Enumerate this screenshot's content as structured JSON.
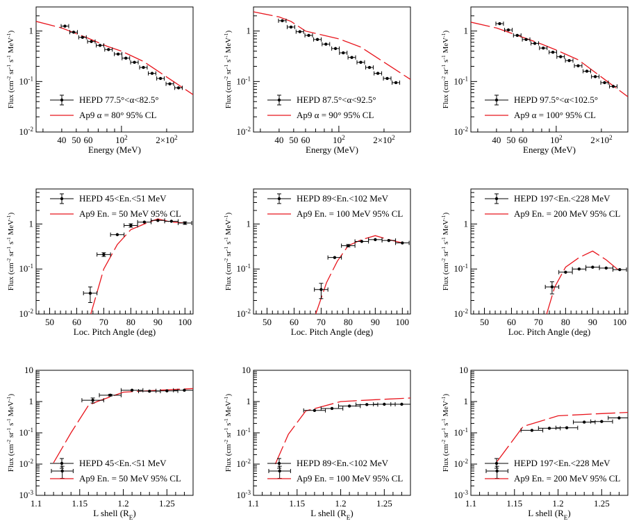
{
  "chart_data": [
    {
      "type": "scatter",
      "xscale": "log",
      "yscale": "log",
      "xlim": [
        27,
        300
      ],
      "ylim": [
        0.01,
        3
      ],
      "xticks": [
        {
          "v": 40,
          "t": "40"
        },
        {
          "v": 50,
          "t": "50"
        },
        {
          "v": 60,
          "t": "60"
        },
        {
          "v": 100,
          "t": "10^2"
        },
        {
          "v": 200,
          "t": "2×10^2"
        }
      ],
      "yticks": [
        {
          "v": 0.01,
          "t": "10^-2"
        },
        {
          "v": 0.1,
          "t": "10^-1"
        },
        {
          "v": 1,
          "t": "1"
        }
      ],
      "xlabel": "Energy (MeV)",
      "ylabel": "Flux (cm^-2 sr^-1 s^-1 MeV^-1)",
      "legend": [
        "HEPD 77.5°<α<82.5°",
        "Ap9 α = 80° 95% CL"
      ],
      "legend_pos": "bottom-left",
      "points": [
        [
          42,
          1.25
        ],
        [
          48,
          0.95
        ],
        [
          55,
          0.75
        ],
        [
          63,
          0.62
        ],
        [
          72,
          0.52
        ],
        [
          82,
          0.43
        ],
        [
          95,
          0.35
        ],
        [
          107,
          0.29
        ],
        [
          122,
          0.24
        ],
        [
          140,
          0.19
        ],
        [
          160,
          0.145
        ],
        [
          182,
          0.115
        ],
        [
          210,
          0.09
        ],
        [
          240,
          0.075
        ]
      ],
      "curve": [
        [
          27,
          1.55
        ],
        [
          40,
          1.15
        ],
        [
          60,
          0.72
        ],
        [
          80,
          0.5
        ],
        [
          100,
          0.4
        ],
        [
          140,
          0.25
        ],
        [
          300,
          0.055
        ]
      ]
    },
    {
      "type": "scatter",
      "xscale": "log",
      "yscale": "log",
      "xlim": [
        27,
        300
      ],
      "ylim": [
        0.01,
        3
      ],
      "xticks": [
        {
          "v": 40,
          "t": "40"
        },
        {
          "v": 50,
          "t": "50"
        },
        {
          "v": 60,
          "t": "60"
        },
        {
          "v": 100,
          "t": "10^2"
        },
        {
          "v": 200,
          "t": "2×10^2"
        }
      ],
      "yticks": [
        {
          "v": 0.01,
          "t": "10^-2"
        },
        {
          "v": 0.1,
          "t": "10^-1"
        },
        {
          "v": 1,
          "t": "1"
        }
      ],
      "xlabel": "Energy (MeV)",
      "ylabel": "Flux (cm^-2 sr^-1 s^-1 MeV^-1)",
      "legend": [
        "HEPD 87.5°<α<92.5°",
        "Ap9 α = 90° 95% CL"
      ],
      "legend_pos": "bottom-left",
      "points": [
        [
          42,
          1.6
        ],
        [
          48,
          1.2
        ],
        [
          55,
          0.97
        ],
        [
          63,
          0.82
        ],
        [
          72,
          0.68
        ],
        [
          82,
          0.55
        ],
        [
          95,
          0.45
        ],
        [
          107,
          0.37
        ],
        [
          122,
          0.3
        ],
        [
          140,
          0.24
        ],
        [
          160,
          0.19
        ],
        [
          182,
          0.145
        ],
        [
          210,
          0.115
        ],
        [
          240,
          0.095
        ]
      ],
      "curve": [
        [
          27,
          2.4
        ],
        [
          40,
          1.9
        ],
        [
          48,
          1.55
        ],
        [
          60,
          1.0
        ],
        [
          100,
          0.7
        ],
        [
          140,
          0.48
        ],
        [
          300,
          0.11
        ]
      ]
    },
    {
      "type": "scatter",
      "xscale": "log",
      "yscale": "log",
      "xlim": [
        27,
        300
      ],
      "ylim": [
        0.01,
        3
      ],
      "xticks": [
        {
          "v": 40,
          "t": "40"
        },
        {
          "v": 50,
          "t": "50"
        },
        {
          "v": 60,
          "t": "60"
        },
        {
          "v": 100,
          "t": "10^2"
        },
        {
          "v": 200,
          "t": "2×10^2"
        }
      ],
      "yticks": [
        {
          "v": 0.01,
          "t": "10^-2"
        },
        {
          "v": 0.1,
          "t": "10^-1"
        },
        {
          "v": 1,
          "t": "1"
        }
      ],
      "xlabel": "Energy (MeV)",
      "ylabel": "Flux (cm^-2 sr^-1 s^-1 MeV^-1)",
      "legend": [
        "HEPD 97.5°<α<102.5°",
        "Ap9 α = 100° 95% CL"
      ],
      "legend_pos": "bottom-left",
      "points": [
        [
          42,
          1.4
        ],
        [
          48,
          1.05
        ],
        [
          55,
          0.82
        ],
        [
          63,
          0.68
        ],
        [
          72,
          0.57
        ],
        [
          82,
          0.46
        ],
        [
          95,
          0.38
        ],
        [
          107,
          0.31
        ],
        [
          122,
          0.26
        ],
        [
          140,
          0.205
        ],
        [
          160,
          0.16
        ],
        [
          182,
          0.125
        ],
        [
          210,
          0.095
        ],
        [
          240,
          0.08
        ]
      ],
      "curve": [
        [
          27,
          1.5
        ],
        [
          40,
          1.15
        ],
        [
          60,
          0.75
        ],
        [
          80,
          0.55
        ],
        [
          100,
          0.42
        ],
        [
          140,
          0.27
        ],
        [
          300,
          0.05
        ]
      ]
    },
    {
      "type": "scatter",
      "xscale": "linear",
      "yscale": "log",
      "xlim": [
        45,
        103
      ],
      "ylim": [
        0.01,
        6
      ],
      "xticks": [
        {
          "v": 50,
          "t": "50"
        },
        {
          "v": 60,
          "t": "60"
        },
        {
          "v": 70,
          "t": "70"
        },
        {
          "v": 80,
          "t": "80"
        },
        {
          "v": 90,
          "t": "90"
        },
        {
          "v": 100,
          "t": "100"
        }
      ],
      "yticks": [
        {
          "v": 0.01,
          "t": "10^-2"
        },
        {
          "v": 0.1,
          "t": "10^-1"
        },
        {
          "v": 1,
          "t": "1"
        }
      ],
      "xlabel": "Loc. Pitch Angle (deg)",
      "ylabel": "Flux (cm^-2 sr^-1 s^-1 MeV^-1)",
      "legend": [
        "HEPD 45<En.<51 MeV",
        "Ap9 En. = 50 MeV 95% CL"
      ],
      "legend_pos": "top-left",
      "points": [
        [
          65,
          0.029
        ],
        [
          70,
          0.21
        ],
        [
          75,
          0.58
        ],
        [
          80,
          0.93
        ],
        [
          85,
          1.1
        ],
        [
          90,
          1.2
        ],
        [
          95,
          1.15
        ],
        [
          100,
          1.05
        ]
      ],
      "yerr": [
        0.011,
        0.02,
        0,
        0.08,
        0,
        0,
        0,
        0.07
      ],
      "curve": [
        [
          65,
          0.009
        ],
        [
          70,
          0.1
        ],
        [
          75,
          0.35
        ],
        [
          80,
          0.75
        ],
        [
          85,
          1.0
        ],
        [
          90,
          1.3
        ],
        [
          95,
          1.1
        ],
        [
          100,
          1.05
        ]
      ]
    },
    {
      "type": "scatter",
      "xscale": "linear",
      "yscale": "log",
      "xlim": [
        45,
        103
      ],
      "ylim": [
        0.01,
        6
      ],
      "xticks": [
        {
          "v": 50,
          "t": "50"
        },
        {
          "v": 60,
          "t": "60"
        },
        {
          "v": 70,
          "t": "70"
        },
        {
          "v": 80,
          "t": "80"
        },
        {
          "v": 90,
          "t": "90"
        },
        {
          "v": 100,
          "t": "100"
        }
      ],
      "yticks": [
        {
          "v": 0.01,
          "t": "10^-2"
        },
        {
          "v": 0.1,
          "t": "10^-1"
        },
        {
          "v": 1,
          "t": "1"
        }
      ],
      "xlabel": "Loc. Pitch Angle (deg)",
      "ylabel": "Flux (cm^-2 sr^-1 s^-1 MeV^-1)",
      "legend": [
        "HEPD 89<En.<102 MeV",
        "Ap9 En. = 100 MeV 95% CL"
      ],
      "legend_pos": "top-left",
      "points": [
        [
          70,
          0.035
        ],
        [
          75,
          0.18
        ],
        [
          80,
          0.33
        ],
        [
          85,
          0.41
        ],
        [
          90,
          0.45
        ],
        [
          95,
          0.43
        ],
        [
          100,
          0.38
        ]
      ],
      "yerr": [
        0.013,
        0,
        0.02,
        0,
        0,
        0,
        0
      ],
      "curve": [
        [
          68,
          0.01
        ],
        [
          72,
          0.05
        ],
        [
          76,
          0.15
        ],
        [
          80,
          0.33
        ],
        [
          85,
          0.45
        ],
        [
          90,
          0.55
        ],
        [
          95,
          0.45
        ],
        [
          100,
          0.38
        ]
      ]
    },
    {
      "type": "scatter",
      "xscale": "linear",
      "yscale": "log",
      "xlim": [
        45,
        103
      ],
      "ylim": [
        0.01,
        6
      ],
      "xticks": [
        {
          "v": 50,
          "t": "50"
        },
        {
          "v": 60,
          "t": "60"
        },
        {
          "v": 70,
          "t": "70"
        },
        {
          "v": 80,
          "t": "80"
        },
        {
          "v": 90,
          "t": "90"
        },
        {
          "v": 100,
          "t": "100"
        }
      ],
      "yticks": [
        {
          "v": 0.01,
          "t": "10^-2"
        },
        {
          "v": 0.1,
          "t": "10^-1"
        },
        {
          "v": 1,
          "t": "1"
        }
      ],
      "xlabel": "Loc. Pitch Angle (deg)",
      "ylabel": "Flux (cm^-2 sr^-1 s^-1 MeV^-1)",
      "legend": [
        "HEPD 197<En.<228 MeV",
        "Ap9 En. = 200 MeV 95% CL"
      ],
      "legend_pos": "top-left",
      "points": [
        [
          75,
          0.04
        ],
        [
          80,
          0.085
        ],
        [
          85,
          0.1
        ],
        [
          90,
          0.11
        ],
        [
          95,
          0.105
        ],
        [
          100,
          0.097
        ]
      ],
      "yerr": [
        0.012,
        0,
        0,
        0,
        0,
        0
      ],
      "curve": [
        [
          73,
          0.01
        ],
        [
          76,
          0.04
        ],
        [
          80,
          0.11
        ],
        [
          85,
          0.18
        ],
        [
          90,
          0.25
        ],
        [
          95,
          0.16
        ],
        [
          100,
          0.09
        ]
      ]
    },
    {
      "type": "scatter",
      "xscale": "linear",
      "yscale": "log",
      "xlim": [
        1.1,
        1.28
      ],
      "ylim": [
        0.001,
        10
      ],
      "xticks": [
        {
          "v": 1.1,
          "t": "1.1"
        },
        {
          "v": 1.15,
          "t": "1.15"
        },
        {
          "v": 1.2,
          "t": "1.2"
        },
        {
          "v": 1.25,
          "t": "1.25"
        }
      ],
      "yticks": [
        {
          "v": 0.001,
          "t": "10^-3"
        },
        {
          "v": 0.01,
          "t": "10^-2"
        },
        {
          "v": 0.1,
          "t": "10^-1"
        },
        {
          "v": 1,
          "t": "1"
        },
        {
          "v": 10,
          "t": "10"
        }
      ],
      "xlabel": "L shell (R_E)",
      "ylabel": "Flux (cm^-2 sr^-1 s^-1 MeV^-1)",
      "legend": [
        "HEPD 45<En.<51 MeV",
        "Ap9 En. = 50 MeV 95% CL"
      ],
      "legend_pos": "bottom-left",
      "points": [
        [
          1.13,
          0.006
        ],
        [
          1.165,
          1.1
        ],
        [
          1.185,
          1.6
        ],
        [
          1.21,
          2.3
        ],
        [
          1.23,
          2.15
        ],
        [
          1.25,
          2.2
        ],
        [
          1.27,
          2.3
        ]
      ],
      "yerr": [
        0.0025,
        0.2,
        0.1,
        0,
        0,
        0,
        0
      ],
      "curve": [
        [
          1.12,
          0.011
        ],
        [
          1.14,
          0.1
        ],
        [
          1.16,
          0.75
        ],
        [
          1.17,
          1.0
        ],
        [
          1.2,
          2.0
        ],
        [
          1.24,
          2.3
        ],
        [
          1.28,
          2.6
        ]
      ]
    },
    {
      "type": "scatter",
      "xscale": "linear",
      "yscale": "log",
      "xlim": [
        1.1,
        1.28
      ],
      "ylim": [
        0.001,
        10
      ],
      "xticks": [
        {
          "v": 1.1,
          "t": "1.1"
        },
        {
          "v": 1.15,
          "t": "1.15"
        },
        {
          "v": 1.2,
          "t": "1.2"
        },
        {
          "v": 1.25,
          "t": "1.25"
        }
      ],
      "yticks": [
        {
          "v": 0.001,
          "t": "10^-3"
        },
        {
          "v": 0.01,
          "t": "10^-2"
        },
        {
          "v": 0.1,
          "t": "10^-1"
        },
        {
          "v": 1,
          "t": "1"
        },
        {
          "v": 10,
          "t": "10"
        }
      ],
      "xlabel": "L shell (R_E)",
      "ylabel": "Flux (cm^-2 sr^-1 s^-1 MeV^-1)",
      "legend": [
        "HEPD 89<En.<102 MeV",
        "Ap9 En. = 100 MeV 95% CL"
      ],
      "legend_pos": "bottom-left",
      "points": [
        [
          1.13,
          0.006
        ],
        [
          1.17,
          0.52
        ],
        [
          1.19,
          0.6
        ],
        [
          1.21,
          0.72
        ],
        [
          1.23,
          0.8
        ],
        [
          1.25,
          0.82
        ],
        [
          1.27,
          0.82
        ]
      ],
      "yerr": [
        0.0025,
        0,
        0,
        0,
        0,
        0,
        0
      ],
      "curve": [
        [
          1.125,
          0.01
        ],
        [
          1.14,
          0.09
        ],
        [
          1.16,
          0.5
        ],
        [
          1.2,
          1.0
        ],
        [
          1.24,
          1.15
        ],
        [
          1.28,
          1.3
        ]
      ]
    },
    {
      "type": "scatter",
      "xscale": "linear",
      "yscale": "log",
      "xlim": [
        1.1,
        1.28
      ],
      "ylim": [
        0.001,
        10
      ],
      "xticks": [
        {
          "v": 1.1,
          "t": "1.1"
        },
        {
          "v": 1.15,
          "t": "1.15"
        },
        {
          "v": 1.2,
          "t": "1.2"
        },
        {
          "v": 1.25,
          "t": "1.25"
        }
      ],
      "yticks": [
        {
          "v": 0.001,
          "t": "10^-3"
        },
        {
          "v": 0.01,
          "t": "10^-2"
        },
        {
          "v": 0.1,
          "t": "10^-1"
        },
        {
          "v": 1,
          "t": "1"
        },
        {
          "v": 10,
          "t": "10"
        }
      ],
      "xlabel": "L shell (R_E)",
      "ylabel": "Flux (cm^-2 sr^-1 s^-1 MeV^-1)",
      "legend": [
        "HEPD 197<En.<228 MeV",
        "Ap9 En. = 200 MeV 95% CL"
      ],
      "legend_pos": "bottom-left",
      "points": [
        [
          1.13,
          0.006
        ],
        [
          1.17,
          0.12
        ],
        [
          1.19,
          0.14
        ],
        [
          1.21,
          0.145
        ],
        [
          1.23,
          0.22
        ],
        [
          1.25,
          0.23
        ],
        [
          1.27,
          0.3
        ]
      ],
      "yerr": [
        0.0025,
        0,
        0,
        0,
        0,
        0,
        0
      ],
      "curve": [
        [
          1.13,
          0.012
        ],
        [
          1.16,
          0.16
        ],
        [
          1.2,
          0.35
        ],
        [
          1.24,
          0.4
        ],
        [
          1.28,
          0.45
        ]
      ]
    }
  ]
}
